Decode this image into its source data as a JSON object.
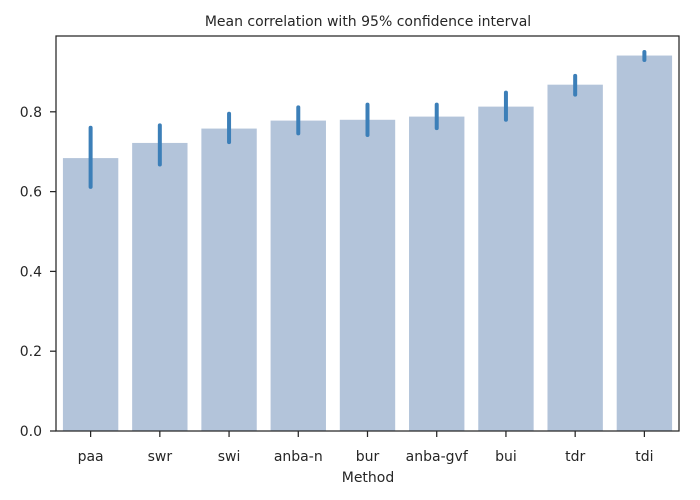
{
  "colors": {
    "bar": "#b3c4da",
    "error_bar": "#3c7fb8",
    "axis": "#262626"
  },
  "chart_data": {
    "type": "bar",
    "title": "Mean correlation with 95% confidence interval",
    "xlabel": "Method",
    "ylabel": "",
    "categories": [
      "paa",
      "swr",
      "swi",
      "anba-n",
      "bur",
      "anba-gvf",
      "bui",
      "tdr",
      "tdi"
    ],
    "values": [
      0.684,
      0.722,
      0.758,
      0.778,
      0.78,
      0.788,
      0.813,
      0.868,
      0.941
    ],
    "ci_low": [
      0.612,
      0.668,
      0.724,
      0.746,
      0.742,
      0.759,
      0.78,
      0.843,
      0.93
    ],
    "ci_high": [
      0.76,
      0.766,
      0.795,
      0.811,
      0.818,
      0.818,
      0.848,
      0.89,
      0.95
    ],
    "ylim": [
      0,
      0.99
    ],
    "yticks": [
      0.0,
      0.2,
      0.4,
      0.6,
      0.8
    ],
    "ytick_labels": [
      "0.0",
      "0.2",
      "0.4",
      "0.6",
      "0.8"
    ],
    "grid": false,
    "legend": "none"
  }
}
